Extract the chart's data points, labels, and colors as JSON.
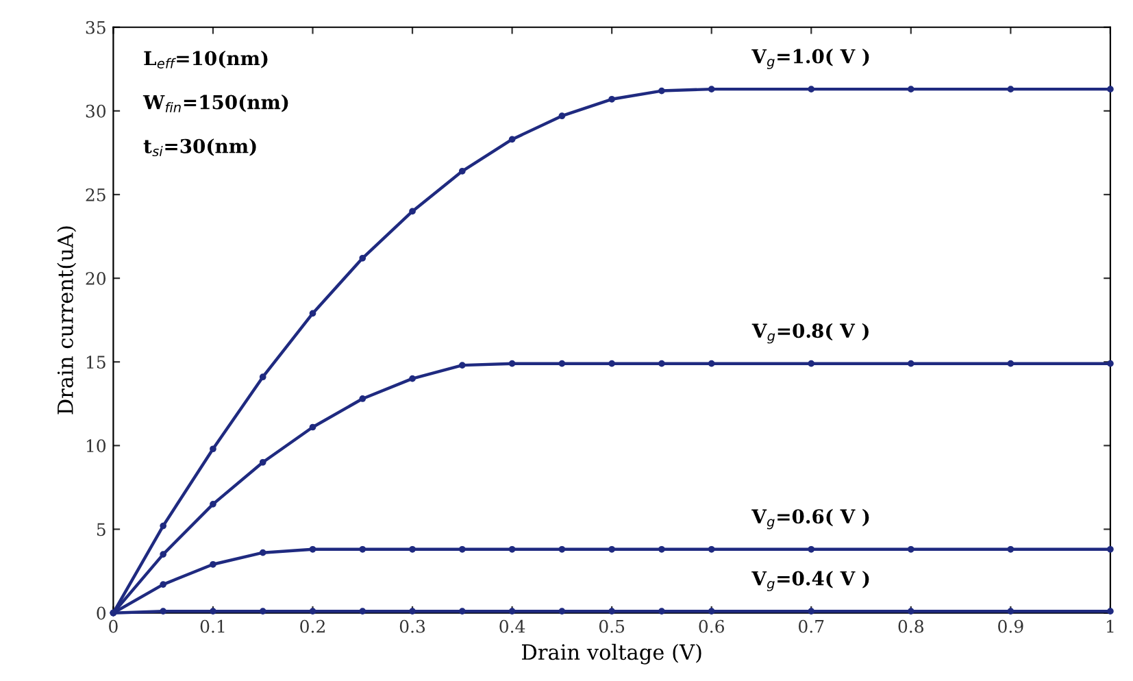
{
  "chart_data": {
    "type": "line",
    "xlabel": "Drain voltage (V)",
    "ylabel": "Drain current(uA)",
    "x": [
      0,
      0.05,
      0.1,
      0.15,
      0.2,
      0.25,
      0.3,
      0.35,
      0.4,
      0.45,
      0.5,
      0.55,
      0.6,
      0.7,
      0.8,
      0.9,
      1.0
    ],
    "series": [
      {
        "name": "V$_{g}$=1.0( V )",
        "color": "#1f2a80",
        "values": [
          0,
          5.2,
          9.8,
          14.1,
          17.9,
          21.2,
          24.0,
          26.4,
          28.3,
          29.7,
          30.7,
          31.2,
          31.3,
          31.3,
          31.3,
          31.3,
          31.3
        ]
      },
      {
        "name": "V$_{g}$=0.8( V )",
        "color": "#1f2a80",
        "values": [
          0,
          3.5,
          6.5,
          9.0,
          11.1,
          12.8,
          14.0,
          14.8,
          14.9,
          14.9,
          14.9,
          14.9,
          14.9,
          14.9,
          14.9,
          14.9,
          14.9
        ]
      },
      {
        "name": "V$_{g}$=0.6( V )",
        "color": "#1f2a80",
        "values": [
          0,
          1.7,
          2.9,
          3.6,
          3.8,
          3.8,
          3.8,
          3.8,
          3.8,
          3.8,
          3.8,
          3.8,
          3.8,
          3.8,
          3.8,
          3.8,
          3.8
        ]
      },
      {
        "name": "V$_{g}$=0.4( V )",
        "color": "#1f2a80",
        "values": [
          0,
          0.1,
          0.1,
          0.1,
          0.1,
          0.1,
          0.1,
          0.1,
          0.1,
          0.1,
          0.1,
          0.1,
          0.1,
          0.1,
          0.1,
          0.1,
          0.1
        ]
      }
    ],
    "annotations": [
      "L$_{eff}$=10(nm)",
      "W$_{fin}$=150(nm)",
      "t$_{si}$=30(nm)"
    ],
    "xlim": [
      0,
      1
    ],
    "ylim": [
      0,
      35
    ],
    "xticks": [
      0,
      0.1,
      0.2,
      0.3,
      0.4,
      0.5,
      0.6,
      0.7,
      0.8,
      0.9,
      1
    ],
    "yticks": [
      0,
      5,
      10,
      15,
      20,
      25,
      30,
      35
    ],
    "marker": "circle",
    "line_style": "solid",
    "grid": false,
    "legend": false
  }
}
